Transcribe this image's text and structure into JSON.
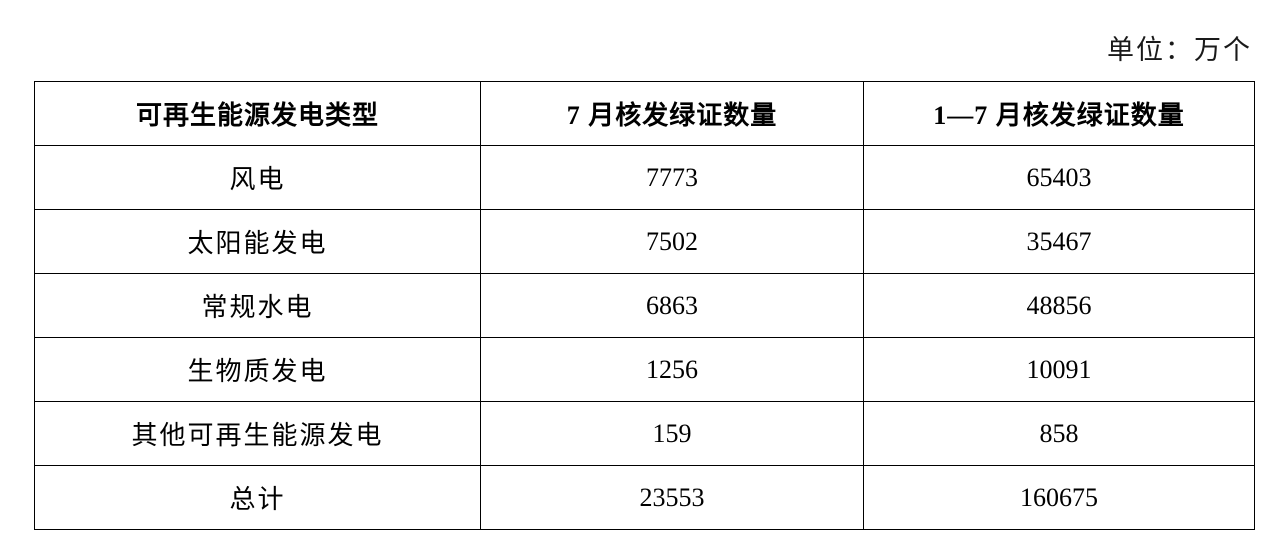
{
  "unit_label": "单位：万个",
  "table": {
    "headers": [
      "可再生能源发电类型",
      "7 月核发绿证数量",
      "1—7 月核发绿证数量"
    ],
    "rows": [
      {
        "type": "风电",
        "july": "7773",
        "jan_to_july": "65403"
      },
      {
        "type": "太阳能发电",
        "july": "7502",
        "jan_to_july": "35467"
      },
      {
        "type": "常规水电",
        "july": "6863",
        "jan_to_july": "48856"
      },
      {
        "type": "生物质发电",
        "july": "1256",
        "jan_to_july": "10091"
      },
      {
        "type": "其他可再生能源发电",
        "july": "159",
        "jan_to_july": "858"
      },
      {
        "type": "总计",
        "july": "23553",
        "jan_to_july": "160675"
      }
    ]
  }
}
